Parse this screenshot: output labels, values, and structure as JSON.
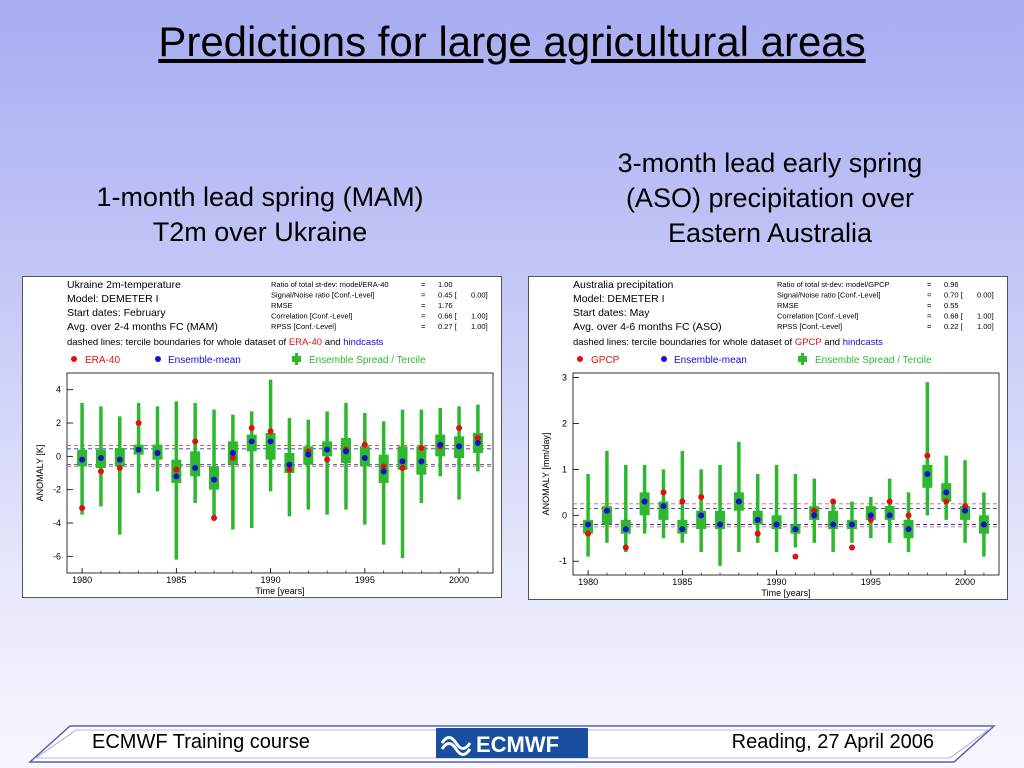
{
  "slide": {
    "title": "Predictions for large agricultural areas",
    "caption_left": [
      "1-month lead spring (MAM)",
      "T2m over Ukraine"
    ],
    "caption_right": [
      "3-month lead early spring",
      "(ASO) precipitation over",
      "Eastern Australia"
    ],
    "footer_left": "ECMWF Training course",
    "footer_right": "Reading, 27 April 2006",
    "logo_text": "ECMWF"
  },
  "colors": {
    "obs": "#e01010",
    "ensemble_mean": "#1010d0",
    "spread": "#2eb82e",
    "tercile_obs": "#e06060",
    "tercile_hind": "#3030c0"
  },
  "chart_data": [
    {
      "type": "box",
      "info_lines": [
        "Ukraine 2m-temperature",
        "Model: DEMETER I",
        "Start dates: February",
        "Avg. over 2-4 months FC (MAM)"
      ],
      "stats": [
        {
          "label": "Ratio of total st-dev: model/ERA-40",
          "eq": "=",
          "val": "1.00",
          "conf": ""
        },
        {
          "label": "Signal/Noise ratio [Conf.-Level]",
          "eq": "=",
          "val": "0.45 [",
          "conf": "0.00]"
        },
        {
          "label": "RMSE",
          "eq": "=",
          "val": "1.76",
          "conf": ""
        },
        {
          "label": "Correlation [Conf.-Level]",
          "eq": "=",
          "val": "0.66 [",
          "conf": "1.00]"
        },
        {
          "label": "RPSS [Conf.-Level]",
          "eq": "=",
          "val": "0.27 [",
          "conf": "1.00]"
        }
      ],
      "dashed_prefix": "dashed lines: tercile boundaries for whole dataset of",
      "dashed_obs": "ERA-40",
      "dashed_and": "and",
      "dashed_hind": "hindcasts",
      "legend": {
        "obs": "ERA-40",
        "mean": "Ensemble-mean",
        "spread": "Ensemble Spread / Tercile"
      },
      "xlabel": "Time [years]",
      "ylabel": "ANOMALY [K]",
      "xlim": [
        1979.2,
        2001.8
      ],
      "ylim": [
        -7,
        5
      ],
      "xticks": [
        1980,
        1985,
        1990,
        1995,
        2000
      ],
      "yticks": [
        -6,
        -4,
        -2,
        0,
        2,
        4
      ],
      "terciles_obs": [
        -0.6,
        0.65
      ],
      "terciles_hind": [
        -0.5,
        0.45
      ],
      "years": [
        1980,
        1981,
        1982,
        1983,
        1984,
        1985,
        1986,
        1987,
        1988,
        1989,
        1990,
        1991,
        1992,
        1993,
        1994,
        1995,
        1996,
        1997,
        1998,
        1999,
        2000,
        2001
      ],
      "whisker_low": [
        -3.5,
        -3.0,
        -4.7,
        -2.2,
        -2.1,
        -6.2,
        -2.8,
        -3.8,
        -4.4,
        -4.3,
        -2.1,
        -3.6,
        -3.2,
        -3.5,
        -3.2,
        -4.1,
        -5.3,
        -6.1,
        -2.8,
        -1.2,
        -2.6,
        -0.9
      ],
      "whisker_high": [
        3.2,
        3.0,
        2.4,
        3.2,
        3.0,
        3.3,
        3.2,
        2.8,
        2.5,
        2.7,
        4.6,
        2.3,
        2.2,
        2.7,
        3.2,
        2.6,
        2.1,
        2.8,
        2.8,
        2.9,
        3.0,
        3.1
      ],
      "box_low": [
        -0.6,
        -0.7,
        -0.6,
        0.1,
        -0.2,
        -1.6,
        -1.2,
        -2.0,
        -0.5,
        0.3,
        -0.2,
        -1.0,
        -0.5,
        0.0,
        -0.4,
        -0.6,
        -1.6,
        -0.8,
        -1.1,
        0.0,
        -0.1,
        0.2
      ],
      "box_high": [
        0.4,
        0.4,
        0.5,
        0.7,
        0.7,
        -0.2,
        0.3,
        -0.6,
        0.9,
        1.3,
        1.4,
        0.2,
        0.6,
        0.9,
        1.1,
        0.6,
        0.1,
        0.6,
        0.6,
        1.3,
        1.2,
        1.4
      ],
      "ensemble_mean": [
        -0.2,
        -0.1,
        -0.2,
        0.4,
        0.2,
        -1.2,
        -0.7,
        -1.4,
        0.2,
        0.9,
        0.9,
        -0.5,
        0.1,
        0.4,
        0.3,
        -0.1,
        -0.9,
        -0.3,
        -0.3,
        0.7,
        0.6,
        0.8
      ],
      "observed": [
        -3.1,
        -0.9,
        -0.7,
        2.0,
        0.2,
        -0.8,
        0.9,
        -3.7,
        -0.1,
        1.7,
        1.5,
        -0.8,
        0.3,
        -0.2,
        0.4,
        0.7,
        -0.6,
        -0.7,
        0.5,
        0.6,
        1.7,
        1.1
      ]
    },
    {
      "type": "box",
      "info_lines": [
        "Australia precipitation",
        "Model: DEMETER I",
        "Start dates: May",
        "Avg. over 4-6 months FC (ASO)"
      ],
      "stats": [
        {
          "label": "Ratio of total st-dev: model/GPCP",
          "eq": "=",
          "val": "0.96",
          "conf": ""
        },
        {
          "label": "Signal/Noise ratio [Conf.-Level]",
          "eq": "=",
          "val": "0.70 [",
          "conf": "0.00]"
        },
        {
          "label": "RMSE",
          "eq": "=",
          "val": "0.55",
          "conf": ""
        },
        {
          "label": "Correlation [Conf.-Level]",
          "eq": "=",
          "val": "0.68 [",
          "conf": "1.00]"
        },
        {
          "label": "RPSS [Conf.-Level]",
          "eq": "=",
          "val": "0.22 [",
          "conf": "1.00]"
        }
      ],
      "dashed_prefix": "dashed lines: tercile boundaries for whole dataset of",
      "dashed_obs": "GPCP",
      "dashed_and": "and",
      "dashed_hind": "hindcasts",
      "legend": {
        "obs": "GPCP",
        "mean": "Ensemble-mean",
        "spread": "Ensemble Spread / Tercile"
      },
      "xlabel": "Time [years]",
      "ylabel": "ANOMALY [mm/day]",
      "xlim": [
        1979.2,
        2001.8
      ],
      "ylim": [
        -1.3,
        3.1
      ],
      "xticks": [
        1980,
        1985,
        1990,
        1995,
        2000
      ],
      "yticks": [
        -1,
        0,
        1,
        2,
        3
      ],
      "terciles_obs": [
        -0.25,
        0.25
      ],
      "terciles_hind": [
        -0.2,
        0.15
      ],
      "years": [
        1980,
        1981,
        1982,
        1983,
        1984,
        1985,
        1986,
        1987,
        1988,
        1989,
        1990,
        1991,
        1992,
        1993,
        1994,
        1995,
        1996,
        1997,
        1998,
        1999,
        2000,
        2001
      ],
      "whisker_low": [
        -0.9,
        -0.6,
        -0.8,
        -0.4,
        -0.5,
        -0.6,
        -0.8,
        -1.1,
        -0.8,
        -0.6,
        -0.8,
        -0.7,
        -0.6,
        -0.8,
        -0.6,
        -0.5,
        -0.6,
        -0.8,
        0.0,
        -0.1,
        -0.6,
        -0.9
      ],
      "whisker_high": [
        0.9,
        1.4,
        1.1,
        1.1,
        1.0,
        1.4,
        1.0,
        1.1,
        1.6,
        0.9,
        1.1,
        0.9,
        0.8,
        0.3,
        0.3,
        0.4,
        0.8,
        0.5,
        2.9,
        1.3,
        1.2,
        0.5
      ],
      "box_low": [
        -0.4,
        -0.2,
        -0.4,
        0.0,
        -0.1,
        -0.4,
        -0.3,
        -0.3,
        0.1,
        -0.2,
        -0.3,
        -0.4,
        -0.1,
        -0.3,
        -0.3,
        -0.1,
        -0.1,
        -0.5,
        0.6,
        0.3,
        -0.1,
        -0.4
      ],
      "box_high": [
        -0.1,
        0.2,
        -0.1,
        0.5,
        0.3,
        -0.1,
        0.1,
        0.1,
        0.5,
        0.1,
        0.0,
        -0.2,
        0.2,
        0.1,
        -0.1,
        0.2,
        0.2,
        -0.1,
        1.1,
        0.7,
        0.2,
        0.0
      ],
      "ensemble_mean": [
        -0.2,
        0.1,
        -0.3,
        0.3,
        0.2,
        -0.3,
        0.0,
        -0.2,
        0.3,
        -0.1,
        -0.2,
        -0.3,
        0.0,
        -0.2,
        -0.2,
        0.0,
        0.0,
        -0.3,
        0.9,
        0.5,
        0.1,
        -0.2
      ],
      "observed": [
        -0.4,
        0.1,
        -0.7,
        0.3,
        0.5,
        0.3,
        0.4,
        -0.2,
        0.3,
        -0.4,
        -0.2,
        -0.9,
        0.1,
        0.3,
        -0.7,
        -0.1,
        0.3,
        0.0,
        1.3,
        0.3,
        0.2,
        -0.2
      ]
    }
  ]
}
